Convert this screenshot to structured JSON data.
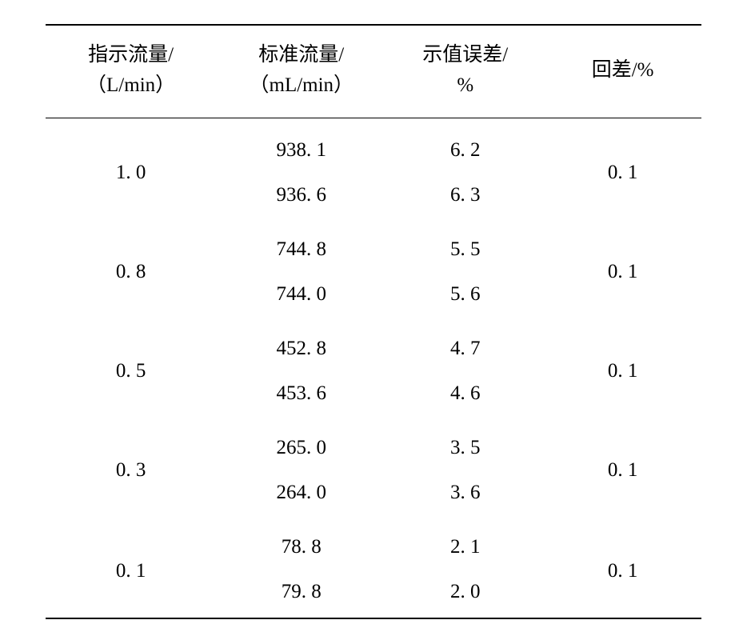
{
  "table": {
    "type": "table",
    "background_color": "#ffffff",
    "text_color": "#000000",
    "border_color": "#000000",
    "font_size_pt": 19,
    "columns": [
      {
        "line1": "指示流量/",
        "line2": "（L/min）"
      },
      {
        "line1": "标准流量/",
        "line2": "（mL/min）"
      },
      {
        "line1": "示值误差/",
        "line2": "%"
      },
      {
        "line1": "回差/%",
        "line2": ""
      }
    ],
    "groups": [
      {
        "indicated": "1. 0",
        "hysteresis": "0. 1",
        "rows": [
          {
            "standard": "938. 1",
            "error": "6. 2"
          },
          {
            "standard": "936. 6",
            "error": "6. 3"
          }
        ]
      },
      {
        "indicated": "0. 8",
        "hysteresis": "0. 1",
        "rows": [
          {
            "standard": "744. 8",
            "error": "5. 5"
          },
          {
            "standard": "744. 0",
            "error": "5. 6"
          }
        ]
      },
      {
        "indicated": "0. 5",
        "hysteresis": "0. 1",
        "rows": [
          {
            "standard": "452. 8",
            "error": "4. 7"
          },
          {
            "standard": "453. 6",
            "error": "4. 6"
          }
        ]
      },
      {
        "indicated": "0. 3",
        "hysteresis": "0. 1",
        "rows": [
          {
            "standard": "265. 0",
            "error": "3. 5"
          },
          {
            "standard": "264. 0",
            "error": "3. 6"
          }
        ]
      },
      {
        "indicated": "0. 1",
        "hysteresis": "0. 1",
        "rows": [
          {
            "standard": "78. 8",
            "error": "2. 1"
          },
          {
            "standard": "79. 8",
            "error": "2. 0"
          }
        ]
      }
    ]
  }
}
